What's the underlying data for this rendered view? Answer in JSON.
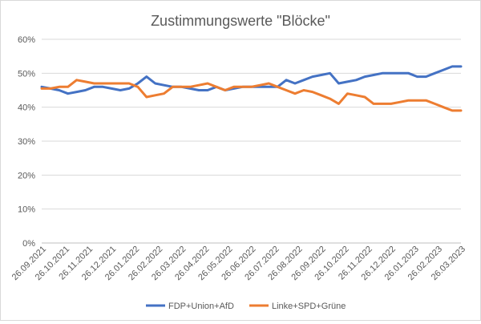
{
  "chart_data": {
    "type": "line",
    "title": "Zustimmungswerte \"Blöcke\"",
    "xlabel": "",
    "ylabel": "",
    "ylim": [
      0,
      60
    ],
    "y_ticks": [
      "0%",
      "10%",
      "20%",
      "30%",
      "40%",
      "50%",
      "60%"
    ],
    "y_tick_values": [
      0,
      10,
      20,
      30,
      40,
      50,
      60
    ],
    "grid": true,
    "legend_position": "bottom",
    "x_tick_labels": [
      "26.09.2021",
      "26.10.2021",
      "26.11.2021",
      "26.12.2021",
      "26.01.2022",
      "26.02.2022",
      "26.03.2022",
      "26.04.2022",
      "26.05.2022",
      "26.06.2022",
      "26.07.2022",
      "26.08.2022",
      "26.09.2022",
      "26.10.2022",
      "26.11.2022",
      "26.12.2022",
      "26.01.2023",
      "26.02.2023",
      "26.03.2023"
    ],
    "series": [
      {
        "name": "FDP+Union+AfD",
        "color": "#4472C4",
        "values": [
          46,
          45.5,
          45,
          44,
          44.5,
          45,
          46,
          46,
          45.5,
          45,
          45.5,
          47,
          49,
          47,
          46.5,
          46,
          46,
          45.5,
          45,
          45,
          46,
          45,
          45.5,
          46,
          46,
          46,
          46,
          46,
          48,
          47,
          48,
          49,
          49.5,
          50,
          47,
          47.5,
          48,
          49,
          49.5,
          50,
          50,
          50,
          50,
          49,
          49,
          50,
          51,
          52,
          52
        ]
      },
      {
        "name": "Linke+SPD+Grüne",
        "color": "#ED7D31",
        "values": [
          45.5,
          45.5,
          46,
          46,
          48,
          47.5,
          47,
          47,
          47,
          47,
          47,
          46,
          43,
          43.5,
          44,
          46,
          46,
          46,
          46.5,
          47,
          46,
          45,
          46,
          46,
          46,
          46.5,
          47,
          46,
          45,
          44,
          45,
          44.5,
          43.5,
          42.5,
          41,
          44,
          43.5,
          43,
          41,
          41,
          41,
          41.5,
          42,
          42,
          42,
          41,
          40,
          39,
          39
        ]
      }
    ]
  }
}
